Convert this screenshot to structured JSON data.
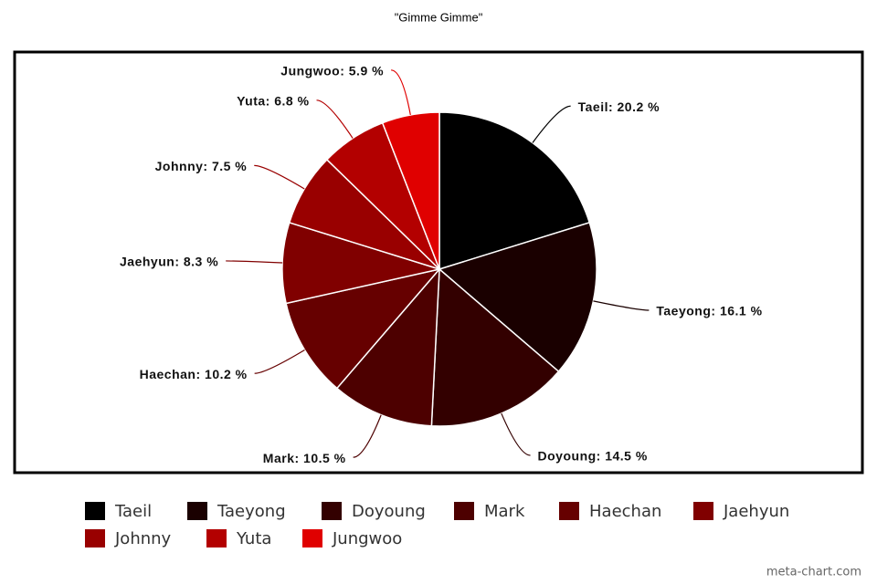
{
  "chart_data": {
    "type": "pie",
    "title": "\"Gimme Gimme\"",
    "categories": [
      "Taeil",
      "Taeyong",
      "Doyoung",
      "Mark",
      "Haechan",
      "Jaehyun",
      "Johnny",
      "Yuta",
      "Jungwoo"
    ],
    "values": [
      20.2,
      16.1,
      14.5,
      10.5,
      10.2,
      8.3,
      7.5,
      6.8,
      5.9
    ],
    "value_labels": [
      "Taeil: 20.2 %",
      "Taeyong: 16.1 %",
      "Doyoung: 14.5 %",
      "Mark: 10.5 %",
      "Haechan: 10.2 %",
      "Jaehyun: 8.3 %",
      "Johnny: 7.5 %",
      "Yuta: 6.8 %",
      "Jungwoo: 5.9 %"
    ],
    "colors": [
      "#000000",
      "#1a0000",
      "#330000",
      "#4d0000",
      "#660000",
      "#800000",
      "#990000",
      "#b30000",
      "#e00000"
    ],
    "legend": "bottom",
    "watermark": "meta-chart.com"
  }
}
